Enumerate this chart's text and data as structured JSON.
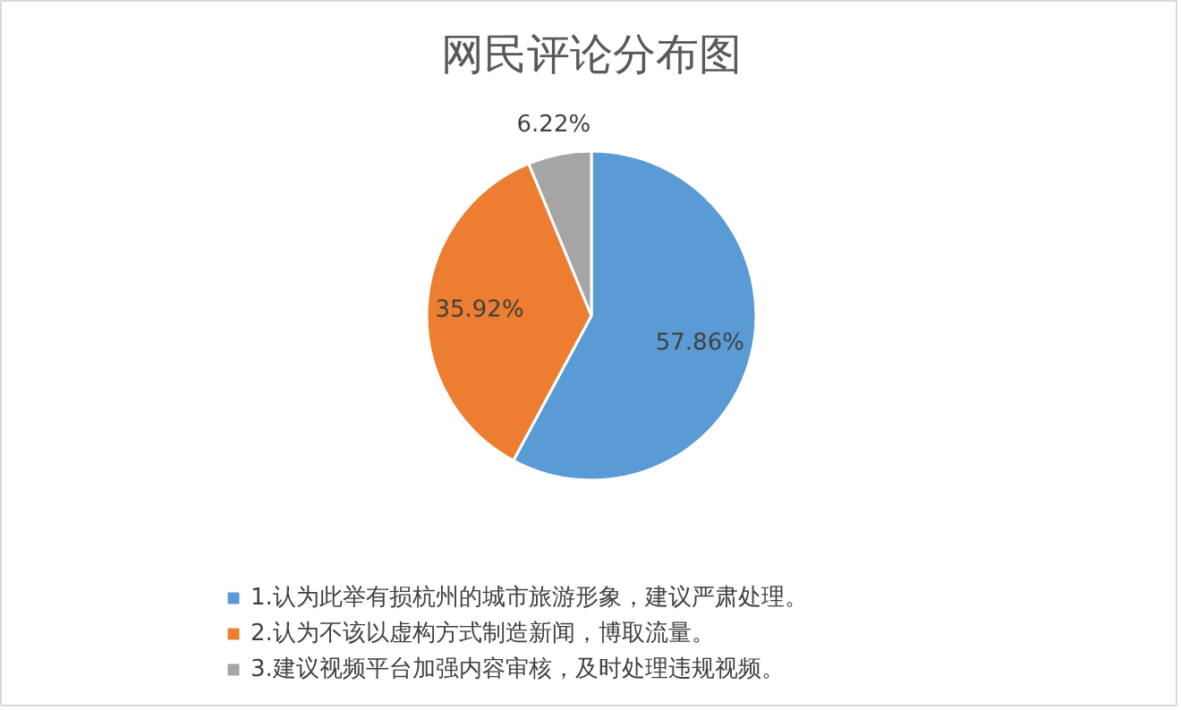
{
  "chart_data": {
    "type": "pie",
    "title": "网民评论分布图",
    "categories": [
      "1.认为此举有损杭州的城市旅游形象，建议严肃处理。",
      "2.认为不该以虚构方式制造新闻，博取流量。",
      "3.建议视频平台加强内容审核，及时处理违规视频。"
    ],
    "values": [
      57.86,
      35.92,
      6.22
    ],
    "colors": [
      "#5b9bd5",
      "#ed7d31",
      "#a5a5a5"
    ],
    "value_labels": [
      "57.86%",
      "35.92%",
      "6.22%"
    ],
    "legend": "bottom"
  }
}
